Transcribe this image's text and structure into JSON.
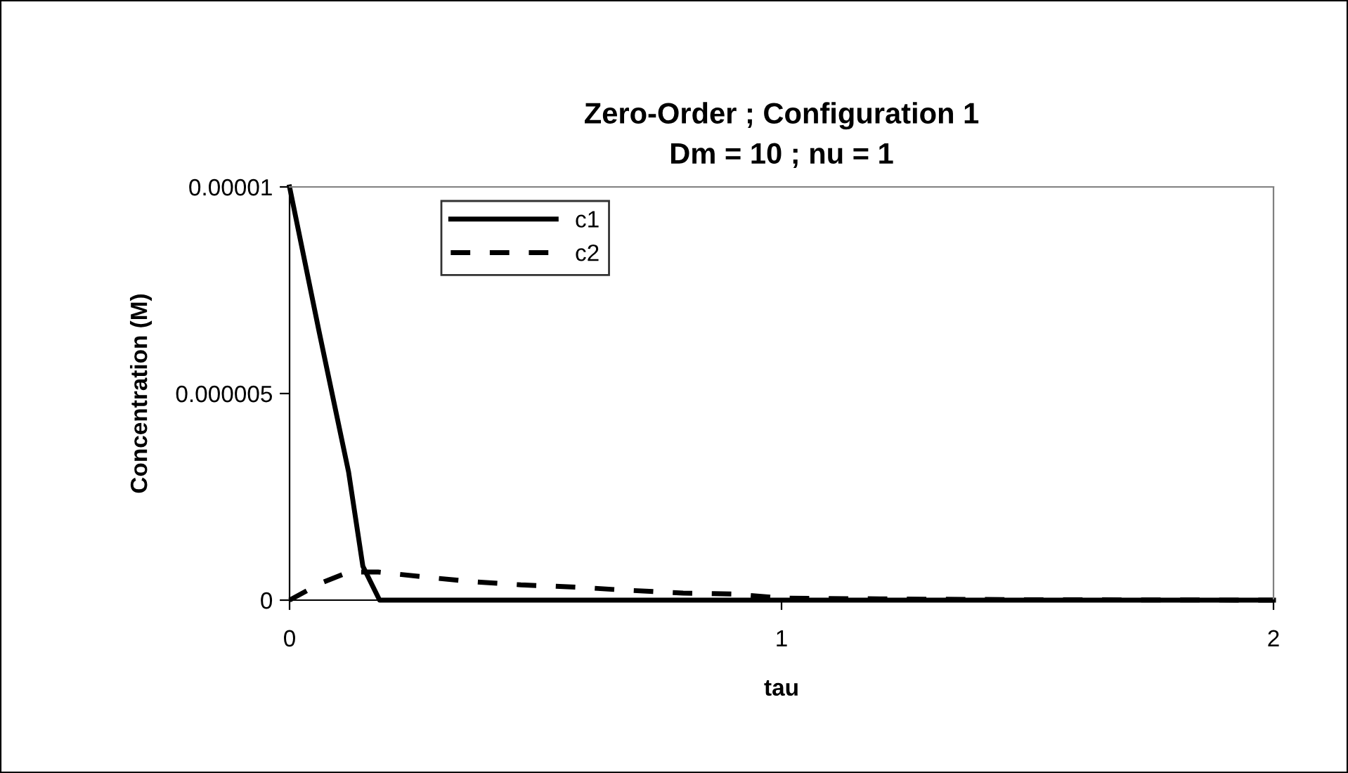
{
  "chart_data": {
    "type": "line",
    "title": "Zero-Order ; Configuration 1\nDm = 10 ; nu = 1",
    "xlabel": "tau",
    "ylabel": "Concentration (M)",
    "xlim": [
      0,
      2
    ],
    "xticks": [
      0,
      1,
      2
    ],
    "ylim": [
      0,
      1e-05
    ],
    "yticks": [
      {
        "value": 0,
        "label": "0"
      },
      {
        "value": 5e-06,
        "label": "0.000005"
      },
      {
        "value": 1e-05,
        "label": "0.00001"
      }
    ],
    "grid": false,
    "legend": "top left",
    "marker": "none",
    "series": [
      {
        "name": "c1",
        "color": "#000000",
        "line_style": "solid",
        "x": [
          0,
          0.06,
          0.12,
          0.149,
          0.183,
          0.3,
          1,
          2
        ],
        "values": [
          1e-05,
          6.5e-06,
          3.1e-06,
          8.2e-07,
          0,
          0,
          0,
          0
        ]
      },
      {
        "name": "c2",
        "color": "#000000",
        "line_style": "dashed",
        "x": [
          0,
          0.063,
          0.12,
          0.18,
          0.29,
          0.38,
          0.47,
          0.59,
          0.67,
          0.8,
          0.9,
          1.0,
          1.2,
          1.5,
          2
        ],
        "values": [
          0,
          4.1e-07,
          6.8e-07,
          6.8e-07,
          5.4e-07,
          4.4e-07,
          3.7e-07,
          3.1e-07,
          2.5e-07,
          1.7e-07,
          1.5e-07,
          5e-08,
          3e-08,
          1e-08,
          0
        ]
      }
    ]
  }
}
